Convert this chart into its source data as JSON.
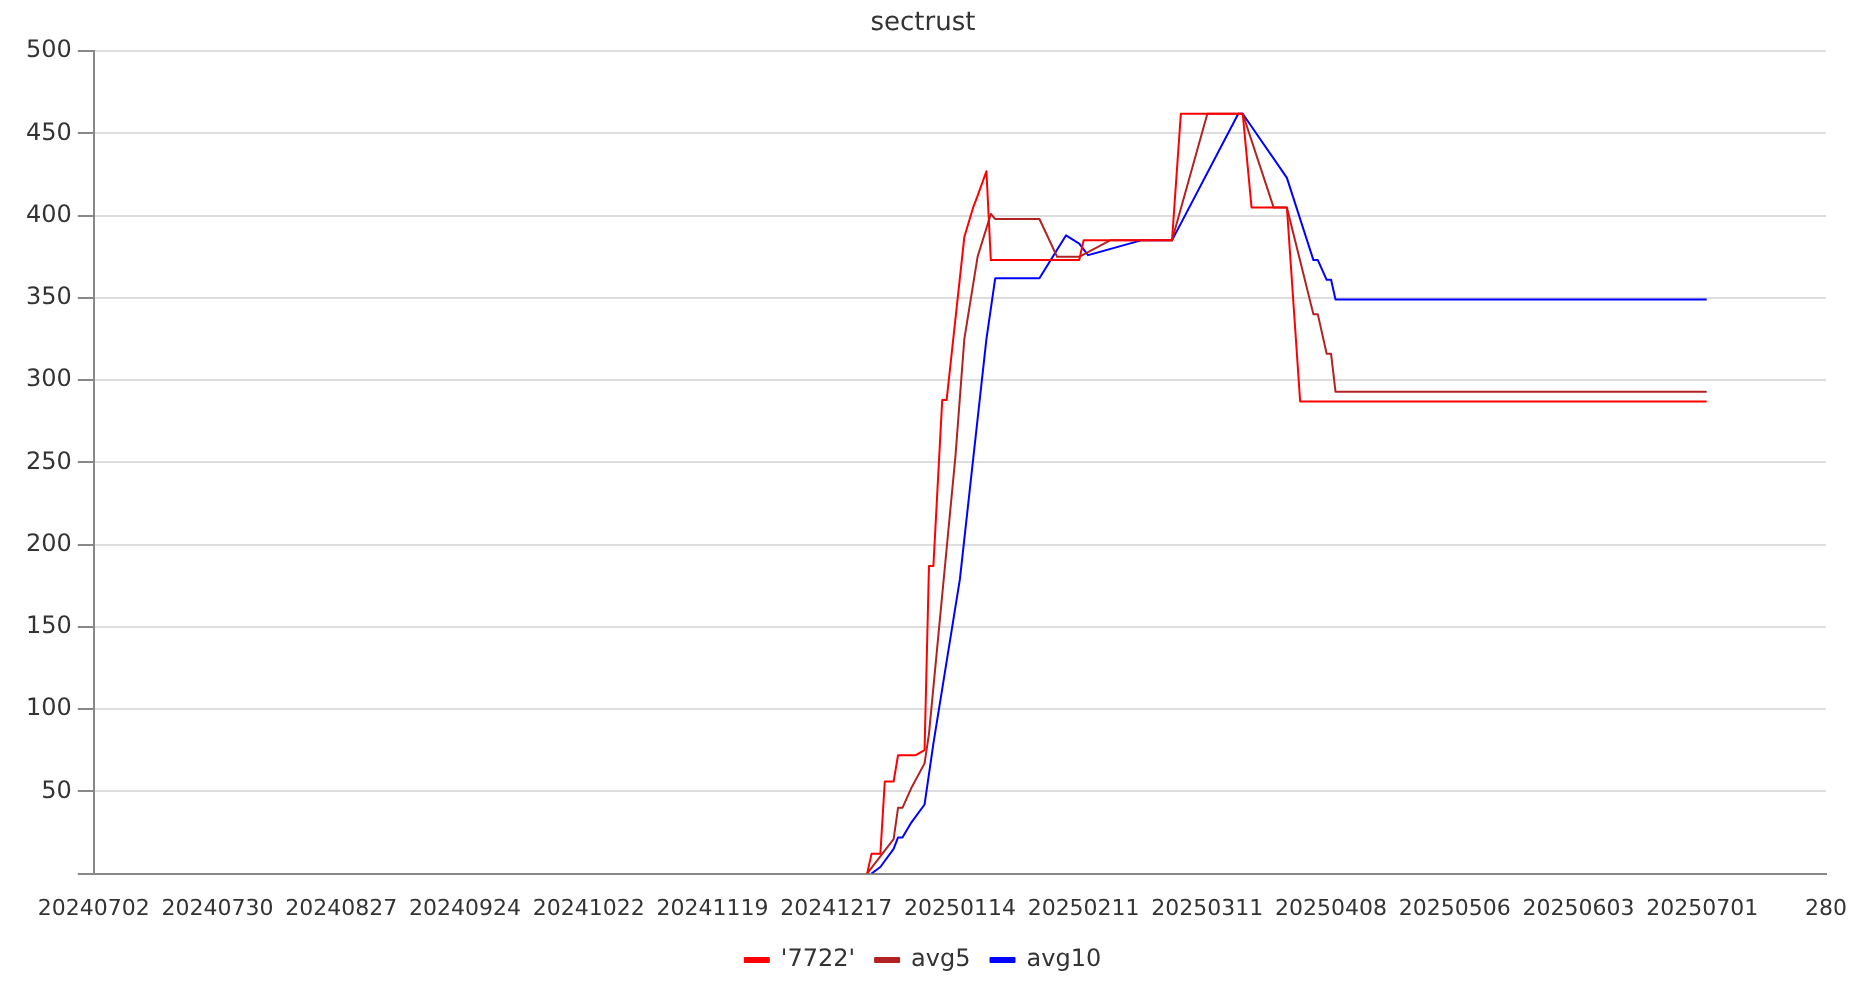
{
  "chart_data": {
    "type": "line",
    "title": "sectrust",
    "xlim": [
      "2024-07-02",
      "2025-07-29"
    ],
    "xticks": [
      {
        "value": "2024-07-02",
        "label": "20240702"
      },
      {
        "value": "2024-07-30",
        "label": "20240730"
      },
      {
        "value": "2024-08-27",
        "label": "20240827"
      },
      {
        "value": "2024-09-24",
        "label": "20240924"
      },
      {
        "value": "2024-10-22",
        "label": "20241022"
      },
      {
        "value": "2024-11-19",
        "label": "20241119"
      },
      {
        "value": "2024-12-17",
        "label": "20241217"
      },
      {
        "value": "2025-01-14",
        "label": "20250114"
      },
      {
        "value": "2025-02-11",
        "label": "20250211"
      },
      {
        "value": "2025-03-11",
        "label": "20250311"
      },
      {
        "value": "2025-04-08",
        "label": "20250408"
      },
      {
        "value": "2025-05-06",
        "label": "20250506"
      },
      {
        "value": "2025-06-03",
        "label": "20250603"
      },
      {
        "value": "2025-07-01",
        "label": "20250701"
      },
      {
        "value": "2025-07-29",
        "label": "280"
      }
    ],
    "ylim": [
      0,
      500
    ],
    "yticks": [
      {
        "value": 0,
        "label": null
      },
      50,
      100,
      150,
      200,
      250,
      300,
      350,
      400,
      450,
      500
    ],
    "grid": "y",
    "legend": "bottom",
    "marker": "none",
    "line_style": "solid",
    "series": [
      {
        "name": "'7722'",
        "color": "#ff0000",
        "x": [
          "2024-12-24",
          "2024-12-25",
          "2024-12-27",
          "2024-12-28",
          "2024-12-30",
          "2024-12-31",
          "2025-01-04",
          "2025-01-06",
          "2025-01-07",
          "2025-01-08",
          "2025-01-10",
          "2025-01-11",
          "2025-01-15",
          "2025-01-17",
          "2025-01-18",
          "2025-01-20",
          "2025-01-21",
          "2025-02-10",
          "2025-02-11",
          "2025-03-03",
          "2025-03-05",
          "2025-03-19",
          "2025-03-21",
          "2025-03-29",
          "2025-04-01",
          "2025-07-02"
        ],
        "values": [
          0,
          12,
          12,
          56,
          56,
          72,
          72,
          75,
          187,
          187,
          288,
          288,
          387,
          405,
          412,
          427,
          373,
          373,
          385,
          385,
          462,
          462,
          405,
          405,
          287,
          287
        ]
      },
      {
        "name": "avg5",
        "color": "#b22222",
        "x": [
          "2024-12-24",
          "2024-12-30",
          "2024-12-31",
          "2025-01-01",
          "2025-01-03",
          "2025-01-06",
          "2025-01-07",
          "2025-01-13",
          "2025-01-15",
          "2025-01-18",
          "2025-01-21",
          "2025-01-22",
          "2025-02-01",
          "2025-02-05",
          "2025-02-10",
          "2025-02-17",
          "2025-03-03",
          "2025-03-11",
          "2025-03-19",
          "2025-03-26",
          "2025-03-29",
          "2025-04-04",
          "2025-04-05",
          "2025-04-07",
          "2025-04-08",
          "2025-04-09",
          "2025-07-02"
        ],
        "values": [
          0,
          21,
          40,
          40,
          52,
          67,
          85,
          254,
          325,
          375,
          401,
          398,
          398,
          375,
          375,
          385,
          385,
          462,
          462,
          405,
          405,
          340,
          340,
          316,
          316,
          293,
          293
        ]
      },
      {
        "name": "avg10",
        "color": "#0000ff",
        "x": [
          "2024-12-25",
          "2024-12-27",
          "2024-12-30",
          "2024-12-31",
          "2025-01-01",
          "2025-01-03",
          "2025-01-06",
          "2025-01-08",
          "2025-01-14",
          "2025-01-20",
          "2025-01-22",
          "2025-02-01",
          "2025-02-07",
          "2025-02-10",
          "2025-02-12",
          "2025-02-24",
          "2025-03-03",
          "2025-03-18",
          "2025-03-19",
          "2025-03-29",
          "2025-04-04",
          "2025-04-05",
          "2025-04-07",
          "2025-04-08",
          "2025-04-09",
          "2025-07-02"
        ],
        "values": [
          0,
          4,
          15,
          22,
          22,
          31,
          42,
          79,
          179,
          325,
          362,
          362,
          388,
          383,
          376,
          385,
          385,
          462,
          462,
          423,
          373,
          373,
          361,
          361,
          349,
          349
        ]
      }
    ]
  }
}
